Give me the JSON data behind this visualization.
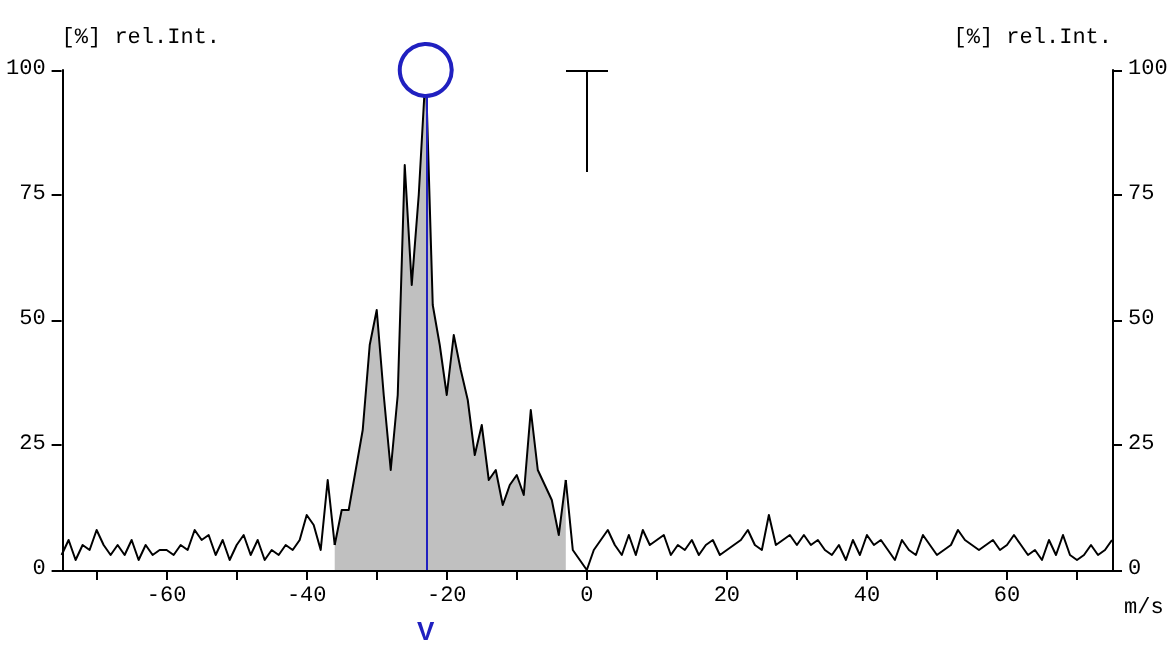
{
  "chart_data": {
    "type": "line",
    "xlabel": "m/s",
    "ylabel": "[%] rel.Int.",
    "y2label": "[%] rel.Int.",
    "x": [
      -75,
      -74,
      -73,
      -72,
      -71,
      -70,
      -69,
      -68,
      -67,
      -66,
      -65,
      -64,
      -63,
      -62,
      -61,
      -60,
      -59,
      -58,
      -57,
      -56,
      -55,
      -54,
      -53,
      -52,
      -51,
      -50,
      -49,
      -48,
      -47,
      -46,
      -45,
      -44,
      -43,
      -42,
      -41,
      -40,
      -39,
      -38,
      -37,
      -36,
      -35,
      -34,
      -33,
      -32,
      -31,
      -30,
      -29,
      -28,
      -27,
      -26,
      -25,
      -24,
      -23,
      -22,
      -21,
      -20,
      -19,
      -18,
      -17,
      -16,
      -15,
      -14,
      -13,
      -12,
      -11,
      -10,
      -9,
      -8,
      -7,
      -6,
      -5,
      -4,
      -3,
      -2,
      -1,
      0,
      1,
      2,
      3,
      4,
      5,
      6,
      7,
      8,
      9,
      10,
      11,
      12,
      13,
      14,
      15,
      16,
      17,
      18,
      19,
      20,
      21,
      22,
      23,
      24,
      25,
      26,
      27,
      28,
      29,
      30,
      31,
      32,
      33,
      34,
      35,
      36,
      37,
      38,
      39,
      40,
      41,
      42,
      43,
      44,
      45,
      46,
      47,
      48,
      49,
      50,
      51,
      52,
      53,
      54,
      55,
      56,
      57,
      58,
      59,
      60,
      61,
      62,
      63,
      64,
      65,
      66,
      67,
      68,
      69,
      70,
      71,
      72,
      73,
      74,
      75
    ],
    "series": [
      {
        "type": "area",
        "color": "#c0c0c0",
        "x": [
          -36,
          -35,
          -34,
          -33,
          -32,
          -31,
          -30,
          -29,
          -28,
          -27,
          -26,
          -25,
          -24,
          -23,
          -22,
          -21,
          -20,
          -19,
          -18,
          -17,
          -16,
          -15,
          -14,
          -13,
          -12,
          -11,
          -10,
          -9,
          -8,
          -7,
          -6,
          -5,
          -4,
          -3
        ],
        "values": [
          5,
          12,
          12,
          20,
          28,
          45,
          52,
          35,
          20,
          35,
          81,
          57,
          75,
          100,
          53,
          45,
          35,
          47,
          40,
          34,
          23,
          29,
          18,
          20,
          13,
          17,
          19,
          15,
          32,
          20,
          17,
          14,
          7,
          18
        ]
      },
      {
        "color": "#000000",
        "values": [
          3,
          6,
          2,
          5,
          4,
          8,
          5,
          3,
          5,
          3,
          6,
          2,
          5,
          3,
          4,
          4,
          3,
          5,
          4,
          8,
          6,
          7,
          3,
          6,
          2,
          5,
          7,
          3,
          6,
          2,
          4,
          3,
          5,
          4,
          6,
          11,
          9,
          4,
          18,
          5,
          null,
          null,
          null,
          null,
          null,
          null,
          null,
          null,
          null,
          null,
          null,
          null,
          null,
          null,
          null,
          null,
          null,
          null,
          null,
          null,
          null,
          null,
          null,
          null,
          null,
          null,
          null,
          null,
          null,
          null,
          null,
          null,
          18,
          4,
          2,
          0,
          4,
          6,
          8,
          5,
          3,
          7,
          3,
          8,
          5,
          6,
          7,
          3,
          5,
          4,
          6,
          3,
          5,
          6,
          3,
          4,
          5,
          6,
          8,
          5,
          4,
          11,
          5,
          6,
          7,
          5,
          7,
          5,
          6,
          4,
          3,
          5,
          2,
          6,
          3,
          7,
          5,
          6,
          4,
          2,
          6,
          4,
          3,
          7,
          5,
          3,
          4,
          5,
          8,
          6,
          5,
          4,
          5,
          6,
          4,
          5,
          7,
          5,
          3,
          4,
          2,
          6,
          3,
          7,
          3,
          2,
          3,
          5,
          3,
          4,
          6
        ]
      }
    ],
    "xlim": [
      -75,
      75
    ],
    "xticks": [
      {
        "value": -70,
        "label": null
      },
      -60,
      {
        "value": -50,
        "label": null
      },
      -40,
      {
        "value": -30,
        "label": null
      },
      -20,
      {
        "value": -10,
        "label": null
      },
      0,
      {
        "value": 10,
        "label": null
      },
      20,
      {
        "value": 30,
        "label": null
      },
      40,
      {
        "value": 50,
        "label": null
      },
      60,
      {
        "value": 70,
        "label": null
      }
    ],
    "ylim": [
      0,
      100
    ],
    "yticks": [
      0,
      25,
      50,
      75,
      100
    ],
    "y2lim": [
      0,
      100
    ],
    "y2ticks": [
      0,
      25,
      50,
      75,
      100
    ],
    "ref_lines": [
      {
        "axis": "x",
        "value": -23,
        "label": "V",
        "color": "#2020c0"
      }
    ],
    "grid": false
  }
}
